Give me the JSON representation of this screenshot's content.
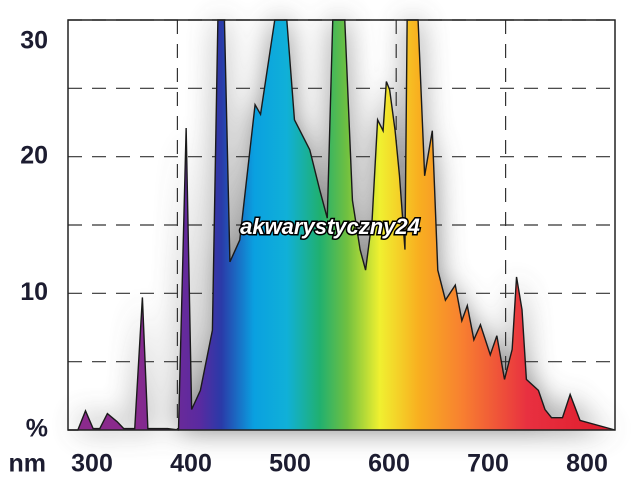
{
  "chart_data": {
    "type": "area",
    "annotation": "akwarystyczny24",
    "x_label": "nm",
    "y_label": "%",
    "x": [
      300,
      309,
      316,
      323,
      329,
      336,
      345,
      351,
      361,
      368,
      373,
      391,
      401,
      408,
      413,
      421,
      432,
      437,
      443,
      448,
      457,
      471,
      476,
      489,
      500,
      507,
      521,
      530,
      537,
      542,
      553,
      560,
      567,
      572,
      578,
      583,
      588,
      591,
      594,
      599,
      603,
      608,
      610,
      620,
      626,
      633,
      638,
      645,
      654,
      660,
      665,
      671,
      677,
      686,
      692,
      699,
      706,
      710,
      715,
      719,
      730,
      736,
      742,
      752,
      759,
      768,
      800
    ],
    "values": [
      0,
      0,
      1.4,
      0.1,
      0.1,
      1.2,
      0.6,
      0.1,
      0.1,
      9.7,
      0.1,
      0.1,
      0,
      22.1,
      1.5,
      2.9,
      7.3,
      30,
      30,
      12.3,
      13.9,
      23.8,
      23.1,
      30,
      30,
      22.7,
      20.5,
      17.6,
      15.5,
      30,
      30,
      16.8,
      13.2,
      11.7,
      15.4,
      22.7,
      21.9,
      25.5,
      24.9,
      21.9,
      18.6,
      13.2,
      30,
      30,
      18.6,
      21.9,
      11.7,
      9.5,
      10.6,
      8,
      9.1,
      6.6,
      7.7,
      5.5,
      6.9,
      3.7,
      5.9,
      11.2,
      8.8,
      3.7,
      2.9,
      1.5,
      0.9,
      0.9,
      2.6,
      0.7,
      0
    ],
    "xlim": [
      300,
      800
    ],
    "ylim": [
      0,
      30
    ],
    "xticks": [
      300,
      400,
      500,
      600,
      700,
      800
    ],
    "yticks": [
      10,
      20,
      30
    ],
    "minor_yticks": [
      5,
      15,
      25
    ],
    "grid": true,
    "fill_gradient": [
      {
        "x": 360,
        "color": "#8a2a8c"
      },
      {
        "x": 420,
        "color": "#5a2aa0"
      },
      {
        "x": 440,
        "color": "#2a3aa8"
      },
      {
        "x": 470,
        "color": "#0aa0e0"
      },
      {
        "x": 500,
        "color": "#10b0d8"
      },
      {
        "x": 530,
        "color": "#20b070"
      },
      {
        "x": 555,
        "color": "#70c040"
      },
      {
        "x": 585,
        "color": "#f0f030"
      },
      {
        "x": 620,
        "color": "#f8b020"
      },
      {
        "x": 660,
        "color": "#f88030"
      },
      {
        "x": 720,
        "color": "#e83040"
      },
      {
        "x": 780,
        "color": "#e02030"
      }
    ]
  }
}
